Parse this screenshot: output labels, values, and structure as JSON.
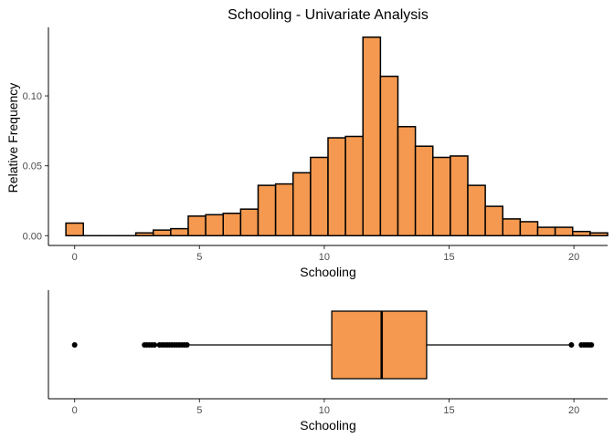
{
  "chart_data": [
    {
      "type": "bar",
      "subtype": "histogram",
      "title": "Schooling - Univariate Analysis",
      "xlabel": "Schooling",
      "ylabel": "Relative Frequency",
      "bin_width": 0.7,
      "bins": [
        {
          "x": 0.0,
          "value": 0.009
        },
        {
          "x": 0.7,
          "value": 0.0
        },
        {
          "x": 1.4,
          "value": 0.0
        },
        {
          "x": 2.1,
          "value": 0.0
        },
        {
          "x": 2.8,
          "value": 0.002
        },
        {
          "x": 3.5,
          "value": 0.004
        },
        {
          "x": 4.2,
          "value": 0.005
        },
        {
          "x": 4.9,
          "value": 0.014
        },
        {
          "x": 5.6,
          "value": 0.015
        },
        {
          "x": 6.3,
          "value": 0.016
        },
        {
          "x": 7.0,
          "value": 0.019
        },
        {
          "x": 7.7,
          "value": 0.036
        },
        {
          "x": 8.4,
          "value": 0.037
        },
        {
          "x": 9.1,
          "value": 0.045
        },
        {
          "x": 9.8,
          "value": 0.056
        },
        {
          "x": 10.5,
          "value": 0.07
        },
        {
          "x": 11.2,
          "value": 0.071
        },
        {
          "x": 11.9,
          "value": 0.142
        },
        {
          "x": 12.6,
          "value": 0.114
        },
        {
          "x": 13.3,
          "value": 0.078
        },
        {
          "x": 14.0,
          "value": 0.064
        },
        {
          "x": 14.7,
          "value": 0.056
        },
        {
          "x": 15.4,
          "value": 0.057
        },
        {
          "x": 16.1,
          "value": 0.036
        },
        {
          "x": 16.8,
          "value": 0.021
        },
        {
          "x": 17.5,
          "value": 0.012
        },
        {
          "x": 18.2,
          "value": 0.01
        },
        {
          "x": 18.9,
          "value": 0.006
        },
        {
          "x": 19.6,
          "value": 0.006
        },
        {
          "x": 20.3,
          "value": 0.003
        },
        {
          "x": 21.0,
          "value": 0.002
        }
      ],
      "xlim": [
        -1.05,
        21.35
      ],
      "ylim": [
        -0.007,
        0.149
      ],
      "x_ticks": [
        0,
        5,
        10,
        15,
        20
      ],
      "y_ticks": [
        0.0,
        0.05,
        0.1
      ],
      "y_tick_labels": [
        "0.00",
        "0.05",
        "0.10"
      ],
      "grid": false,
      "fill_color": "#F4994F",
      "stroke_color": "#000000"
    },
    {
      "type": "boxplot",
      "xlabel": "Schooling",
      "orientation": "horizontal",
      "box": {
        "q1": 10.3,
        "median": 12.3,
        "q3": 14.1,
        "whisker_low": 4.6,
        "whisker_high": 19.8
      },
      "outliers": [
        0.0,
        2.8,
        2.9,
        3.0,
        3.1,
        3.2,
        3.4,
        3.5,
        3.6,
        3.7,
        3.8,
        3.9,
        4.0,
        4.1,
        4.2,
        4.3,
        4.4,
        4.5,
        19.9,
        20.3,
        20.4,
        20.5,
        20.6,
        20.7
      ],
      "xlim": [
        -1.05,
        21.35
      ],
      "x_ticks": [
        0,
        5,
        10,
        15,
        20
      ],
      "grid": false,
      "fill_color": "#F4994F",
      "stroke_color": "#000000"
    }
  ]
}
